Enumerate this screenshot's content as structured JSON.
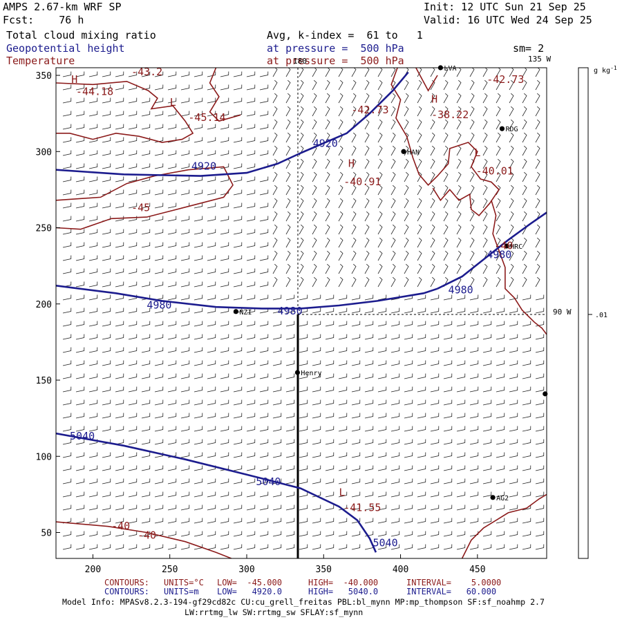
{
  "header": {
    "model": "AMPS 2.67-km WRF SP",
    "fcst": "Fcst:    76 h",
    "init": "Init: 12 UTC Sun 21 Sep 25",
    "valid": "Valid: 16 UTC Wed 24 Sep 25",
    "field1": "Total cloud mixing ratio",
    "field2": "Geopotential height",
    "field3": "Temperature",
    "avg": "Avg, k-index =  61 to   1",
    "pressure1": "at pressure =  500 hPa",
    "pressure2": "at pressure =  500 hPa",
    "sm": "sm= 2"
  },
  "colors": {
    "height": "#1c1c8e",
    "temperature": "#8b1a1a",
    "frame": "#000000"
  },
  "axes": {
    "x_ticks": [
      200,
      250,
      300,
      350,
      400,
      450
    ],
    "y_ticks": [
      50,
      100,
      150,
      200,
      250,
      300,
      350
    ],
    "x_range": [
      176,
      495
    ],
    "y_range": [
      33,
      355
    ]
  },
  "longitude_labels": {
    "lon180": "180",
    "lon135": "135 W",
    "lon90": "90 W"
  },
  "colorbar": {
    "unit": "g kg",
    "unit_sup": "-1",
    "value": ".01"
  },
  "stations": [
    {
      "name": "LVA",
      "x": 426,
      "y": 355
    },
    {
      "name": "RDG",
      "x": 466,
      "y": 315
    },
    {
      "name": "HAN",
      "x": 402,
      "y": 300
    },
    {
      "name": "HRC",
      "x": 469,
      "y": 238
    },
    {
      "name": "NZI",
      "x": 293,
      "y": 195
    },
    {
      "name": "Henry",
      "x": 333,
      "y": 155
    },
    {
      "name": "AG2",
      "x": 460,
      "y": 73
    },
    {
      "name": "",
      "x": 494,
      "y": 141
    }
  ],
  "height_labels": [
    {
      "text": "4920",
      "x": 264,
      "y": 288
    },
    {
      "text": "4920",
      "x": 343,
      "y": 303
    },
    {
      "text": "4980",
      "x": 235,
      "y": 197
    },
    {
      "text": "4980",
      "x": 320,
      "y": 193
    },
    {
      "text": "4980",
      "x": 431,
      "y": 207
    },
    {
      "text": "4980",
      "x": 456,
      "y": 230
    },
    {
      "text": "5040",
      "x": 185,
      "y": 111
    },
    {
      "text": "5040",
      "x": 306,
      "y": 81
    },
    {
      "text": "5040",
      "x": 382,
      "y": 41
    }
  ],
  "temp_labels": [
    {
      "text": "-43.2",
      "x": 225,
      "y": 350
    },
    {
      "text": "-44.18",
      "x": 189,
      "y": 337
    },
    {
      "text": "-45.14",
      "x": 262,
      "y": 320
    },
    {
      "text": "-42.73",
      "x": 368,
      "y": 325
    },
    {
      "text": "-38.22",
      "x": 420,
      "y": 322
    },
    {
      "text": "-40.01",
      "x": 449,
      "y": 285
    },
    {
      "text": "-40.91",
      "x": 363,
      "y": 278
    },
    {
      "text": "-42.73",
      "x": 456,
      "y": 345
    },
    {
      "text": "-45",
      "x": 225,
      "y": 261
    },
    {
      "text": "-40",
      "x": 461,
      "y": 236
    },
    {
      "text": "-41.55",
      "x": 363,
      "y": 64
    },
    {
      "text": "-40",
      "x": 212,
      "y": 52
    },
    {
      "text": "-40",
      "x": 229,
      "y": 46
    }
  ],
  "high_low_markers": [
    {
      "text": "H",
      "x": 186,
      "y": 345
    },
    {
      "text": "L",
      "x": 250,
      "y": 330
    },
    {
      "text": "H",
      "x": 420,
      "y": 332
    },
    {
      "text": "H",
      "x": 366,
      "y": 290
    },
    {
      "text": "L",
      "x": 448,
      "y": 297
    },
    {
      "text": "L",
      "x": 360,
      "y": 74
    }
  ],
  "height_contours": [
    [
      [
        176,
        288
      ],
      [
        220,
        285
      ],
      [
        270,
        284
      ],
      [
        300,
        286
      ],
      [
        320,
        292
      ],
      [
        335,
        299
      ]
    ],
    [
      [
        335,
        299
      ],
      [
        365,
        312
      ],
      [
        380,
        325
      ],
      [
        395,
        340
      ],
      [
        405,
        352
      ]
    ],
    [
      [
        176,
        212
      ],
      [
        215,
        207
      ],
      [
        245,
        202
      ],
      [
        280,
        198
      ],
      [
        310,
        197
      ],
      [
        335,
        197
      ],
      [
        360,
        199
      ],
      [
        385,
        202
      ],
      [
        415,
        207
      ],
      [
        424,
        210
      ]
    ],
    [
      [
        424,
        210
      ],
      [
        440,
        218
      ],
      [
        455,
        230
      ],
      [
        470,
        242
      ],
      [
        485,
        253
      ],
      [
        495,
        260
      ]
    ],
    [
      [
        176,
        115
      ],
      [
        220,
        107
      ],
      [
        260,
        98
      ],
      [
        300,
        88
      ],
      [
        335,
        79
      ],
      [
        360,
        67
      ],
      [
        372,
        58
      ],
      [
        380,
        46
      ],
      [
        384,
        37
      ]
    ]
  ],
  "temp_contours": [
    [
      [
        176,
        345
      ],
      [
        200,
        344
      ],
      [
        222,
        346
      ],
      [
        236,
        340
      ],
      [
        242,
        335
      ],
      [
        238,
        328
      ],
      [
        252,
        330
      ],
      [
        260,
        320
      ],
      [
        265,
        312
      ],
      [
        258,
        308
      ],
      [
        245,
        306
      ],
      [
        230,
        310
      ],
      [
        215,
        312
      ],
      [
        200,
        308
      ],
      [
        185,
        312
      ],
      [
        176,
        312
      ]
    ],
    [
      [
        280,
        355
      ],
      [
        276,
        345
      ],
      [
        282,
        336
      ],
      [
        276,
        326
      ],
      [
        282,
        320
      ],
      [
        296,
        324
      ]
    ],
    [
      [
        176,
        268
      ],
      [
        205,
        270
      ],
      [
        222,
        279
      ],
      [
        240,
        284
      ],
      [
        262,
        288
      ],
      [
        285,
        290
      ],
      [
        291,
        278
      ],
      [
        285,
        270
      ],
      [
        262,
        264
      ],
      [
        235,
        257
      ],
      [
        212,
        256
      ],
      [
        192,
        249
      ],
      [
        176,
        250
      ]
    ],
    [
      [
        398,
        355
      ],
      [
        394,
        344
      ],
      [
        400,
        334
      ],
      [
        397,
        322
      ],
      [
        404,
        310
      ],
      [
        408,
        296
      ],
      [
        412,
        285
      ],
      [
        418,
        278
      ],
      [
        424,
        284
      ],
      [
        431,
        292
      ],
      [
        432,
        302
      ],
      [
        444,
        306
      ],
      [
        450,
        300
      ],
      [
        446,
        290
      ],
      [
        452,
        282
      ],
      [
        459,
        280
      ],
      [
        464,
        275
      ],
      [
        458,
        266
      ],
      [
        451,
        258
      ],
      [
        446,
        262
      ],
      [
        445,
        272
      ],
      [
        438,
        268
      ],
      [
        432,
        275
      ],
      [
        426,
        268
      ],
      [
        421,
        276
      ]
    ],
    [
      [
        410,
        355
      ],
      [
        418,
        340
      ],
      [
        424,
        350
      ]
    ],
    [
      [
        459,
        268
      ],
      [
        462,
        258
      ],
      [
        460,
        246
      ],
      [
        464,
        235
      ],
      [
        468,
        224
      ],
      [
        468,
        210
      ],
      [
        474,
        204
      ],
      [
        479,
        196
      ],
      [
        487,
        188
      ],
      [
        492,
        184
      ],
      [
        495,
        180
      ]
    ],
    [
      [
        176,
        57
      ],
      [
        210,
        54
      ],
      [
        235,
        50
      ],
      [
        260,
        44
      ],
      [
        280,
        37
      ],
      [
        290,
        33
      ]
    ],
    [
      [
        440,
        33
      ],
      [
        446,
        45
      ],
      [
        454,
        53
      ],
      [
        462,
        58
      ],
      [
        470,
        63
      ],
      [
        482,
        66
      ],
      [
        490,
        72
      ],
      [
        495,
        75
      ]
    ]
  ],
  "footer": {
    "contours1_label": "CONTOURS:",
    "contours1_units": "UNITS=°C",
    "contours1_low": "LOW=  -45.000",
    "contours1_high": "HIGH=  -40.000",
    "contours1_interval": "INTERVAL=    5.0000",
    "contours2_label": "CONTOURS:",
    "contours2_units": "UNITS=m",
    "contours2_low": "LOW=   4920.0",
    "contours2_high": "HIGH=   5040.0",
    "contours2_interval": "INTERVAL=   60.000",
    "model_info": "Model Info: MPASv8.2.3-194-gf29cd82c CU:cu_grell_freitas PBL:bl_mynn MP:mp_thompson SF:sf_noahmp 2.7",
    "model_info2": "LW:rrtmg_lw SW:rrtmg_sw SFLAY:sf_mynn"
  }
}
